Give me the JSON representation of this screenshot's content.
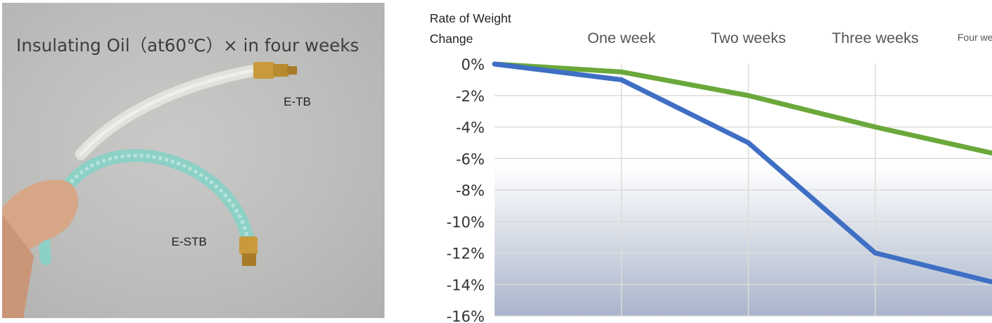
{
  "photo": {
    "caption": "Insulating Oil（at60℃）× in four weeks",
    "label_top": "E-TB",
    "label_bottom": "E-STB"
  },
  "chart_data": {
    "type": "line",
    "ylabel_line1": "Rate of Weight",
    "ylabel_line2": "Change",
    "categories": [
      "One week",
      "Two weeks",
      "Three weeks",
      "Four weeks"
    ],
    "x": [
      0,
      1,
      2,
      3,
      4
    ],
    "series": [
      {
        "values": [
          0,
          -0.5,
          -2,
          -4,
          -5.8
        ],
        "color": "#6aa83a"
      },
      {
        "values": [
          0,
          -1,
          -5,
          -12,
          -14
        ],
        "color": "#3f6fc4"
      }
    ],
    "y_ticks": [
      "0%",
      "-2%",
      "-4%",
      "-6%",
      "-8%",
      "-10%",
      "-12%",
      "-14%",
      "-16%"
    ],
    "ylim": [
      -16,
      0
    ],
    "grid": true
  }
}
